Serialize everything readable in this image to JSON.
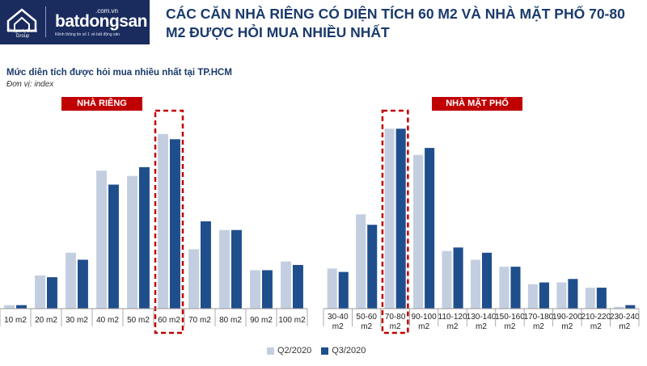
{
  "header": {
    "logo_group": "PropertyGuru Group",
    "logo_domain": ".com.vn",
    "logo_brand": "batdongsan",
    "logo_tagline": "Kênh thông tin số 1 về bất động sản",
    "title": "CÁC CĂN NHÀ RIÊNG CÓ DIỆN TÍCH 60 M2 VÀ NHÀ MẶT PHỐ 70-80 M2 ĐƯỢC HỎI MUA NHIỀU NHẤT"
  },
  "subtitle": "Mức diên tích được hỏi mua nhiều nhất tại TP.HCM",
  "unit": "Đơn vị: index",
  "legend": {
    "q2": "Q2/2020",
    "q3": "Q3/2020"
  },
  "colors": {
    "q2": "#c3cfe0",
    "q3": "#1f4e8c",
    "highlight": "#c00000",
    "axis": "#999999"
  },
  "chart_data": [
    {
      "type": "bar",
      "panel_label": "NHÀ RIÊNG",
      "categories": [
        "10 m2",
        "20 m2",
        "30 m2",
        "40 m2",
        "50 m2",
        "60 m2",
        "70 m2",
        "80 m2",
        "90 m2",
        "100 m2"
      ],
      "series": [
        {
          "name": "Q2/2020",
          "values": [
            2,
            19,
            32,
            79,
            76,
            100,
            34,
            45,
            22,
            27
          ]
        },
        {
          "name": "Q3/2020",
          "values": [
            2,
            18,
            28,
            71,
            81,
            97,
            50,
            45,
            22,
            25
          ]
        }
      ],
      "ylim": [
        0,
        105
      ],
      "highlight_category": "60 m2"
    },
    {
      "type": "bar",
      "panel_label": "NHÀ MẶT PHỐ",
      "categories": [
        "30-40 m2",
        "50-60 m2",
        "70-80 m2",
        "90-100 m2",
        "110-120 m2",
        "130-140 m2",
        "150-160 m2",
        "170-180 m2",
        "190-200 m2",
        "210-220 m2",
        "230-240 m2"
      ],
      "series": [
        {
          "name": "Q2/2020",
          "values": [
            23,
            54,
            103,
            88,
            33,
            28,
            24,
            14,
            15,
            12,
            1
          ]
        },
        {
          "name": "Q3/2020",
          "values": [
            21,
            48,
            103,
            92,
            35,
            32,
            24,
            15,
            17,
            12,
            2
          ]
        }
      ],
      "ylim": [
        0,
        105
      ],
      "highlight_category": "70-80 m2"
    }
  ]
}
